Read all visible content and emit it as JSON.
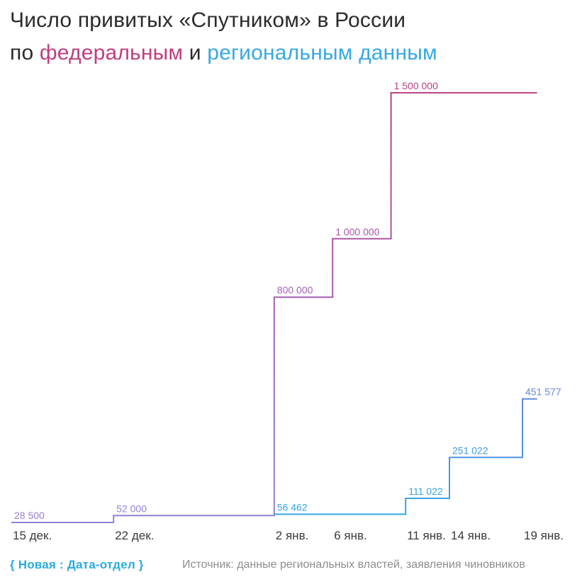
{
  "title": {
    "line1": "Число привитых «Спутником» в России",
    "line2_prefix": "по ",
    "federal_word": "федеральным",
    "line2_mid": " и ",
    "regional_words": "региональным данным",
    "text_color": "#2b2b2b",
    "federal_color": "#c03e80",
    "regional_color": "#38a8e4"
  },
  "chart_data": {
    "type": "line",
    "subtype": "step-after",
    "grid": false,
    "legend_position": "none",
    "x_unit": "days since 15 Dec 2020",
    "ylim": [
      0,
      1550000
    ],
    "x_end_day": 36,
    "x_ticks": [
      {
        "label": "15 дек.",
        "day": 0
      },
      {
        "label": "22 дек.",
        "day": 7
      },
      {
        "label": "2 янв.",
        "day": 18
      },
      {
        "label": "6 янв.",
        "day": 22
      },
      {
        "label": "11 янв.",
        "day": 27
      },
      {
        "label": "14 янв.",
        "day": 30
      },
      {
        "label": "19 янв.",
        "day": 35
      }
    ],
    "series": [
      {
        "key": "federal",
        "name": "федеральные данные",
        "color_bottom": "#9480d4",
        "color_mid": "#a55fb5",
        "color_top": "#b7407e",
        "points": [
          {
            "day": 0,
            "date": "15 дек.",
            "value": 28500,
            "label": "28 500",
            "label_color": "#9480d4"
          },
          {
            "day": 7,
            "date": "22 дек.",
            "value": 52000,
            "label": "52 000",
            "label_color": "#9480d4"
          },
          {
            "day": 18,
            "date": "2 янв.",
            "value": 800000,
            "label": "800 000",
            "label_color": "#a55fb5"
          },
          {
            "day": 22,
            "date": "6 янв.",
            "value": 1000000,
            "label": "1 000 000",
            "label_color": "#aa54a8"
          },
          {
            "day": 26,
            "date": "10 янв.",
            "value": 1500000,
            "label": "1 500 000",
            "label_color": "#b7407e"
          }
        ]
      },
      {
        "key": "regional",
        "name": "региональные данные",
        "color_bottom": "#32a6e8",
        "color_top": "#6787e0",
        "points": [
          {
            "day": 18,
            "date": "2 янв.",
            "value": 56462,
            "label": "56 462",
            "label_color": "#32a6e8"
          },
          {
            "day": 27,
            "date": "11 янв.",
            "value": 111022,
            "label": "111 022",
            "label_color": "#35a4e6"
          },
          {
            "day": 30,
            "date": "14 янв.",
            "value": 251022,
            "label": "251 022",
            "label_color": "#3f9be2"
          },
          {
            "day": 35,
            "date": "19 янв.",
            "value": 451577,
            "label": "451 577",
            "label_color": "#6787e0"
          }
        ]
      }
    ]
  },
  "footer": {
    "brand": "{ Новая : Дата-отдел }",
    "brand_color": "#29abe2",
    "source": "Источник: данные региональных властей, заявления чиновников"
  }
}
